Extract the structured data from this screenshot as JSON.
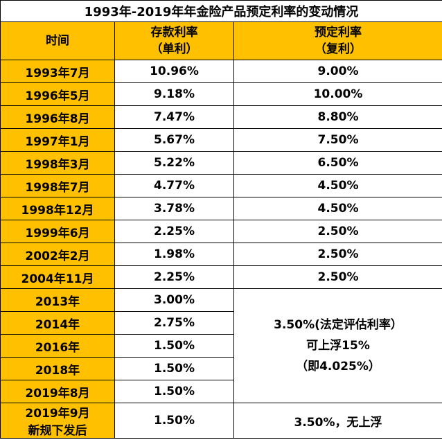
{
  "title": "1993年-2019年年金险产品预定利率的变动情况",
  "headers": {
    "time": "时间",
    "deposit_line1": "存款利率",
    "deposit_line2": "（单利）",
    "preset_line1": "预定利率",
    "preset_line2": "（复利）"
  },
  "rows": [
    {
      "time": "1993年7月",
      "deposit": "10.96%",
      "preset": "9.00%"
    },
    {
      "time": "1996年5月",
      "deposit": "9.18%",
      "preset": "10.00%"
    },
    {
      "time": "1996年8月",
      "deposit": "7.47%",
      "preset": "8.80%"
    },
    {
      "time": "1997年1月",
      "deposit": "5.67%",
      "preset": "7.50%"
    },
    {
      "time": "1998年3月",
      "deposit": "5.22%",
      "preset": "6.50%"
    },
    {
      "time": "1998年7月",
      "deposit": "4.77%",
      "preset": "4.50%"
    },
    {
      "time": "1998年12月",
      "deposit": "3.78%",
      "preset": "4.50%"
    },
    {
      "time": "1999年6月",
      "deposit": "2.25%",
      "preset": "2.50%"
    },
    {
      "time": "2002年2月",
      "deposit": "1.98%",
      "preset": "2.50%"
    },
    {
      "time": "2004年11月",
      "deposit": "2.25%",
      "preset": "2.50%"
    },
    {
      "time": "2013年",
      "deposit": "3.00%"
    },
    {
      "time": "2014年",
      "deposit": "2.75%"
    },
    {
      "time": "2016年",
      "deposit": "1.50%"
    },
    {
      "time": "2018年",
      "deposit": "1.50%"
    },
    {
      "time": "2019年8月",
      "deposit": "1.50%"
    },
    {
      "time_line1": "2019年9月",
      "time_line2": "新规下发后",
      "deposit": "1.50%",
      "preset": "3.50%，无上浮"
    }
  ],
  "merged_preset": {
    "line1": "3.50%(法定评估利率）",
    "line2": "可上浮15%",
    "line3": "（即4.025%）"
  }
}
